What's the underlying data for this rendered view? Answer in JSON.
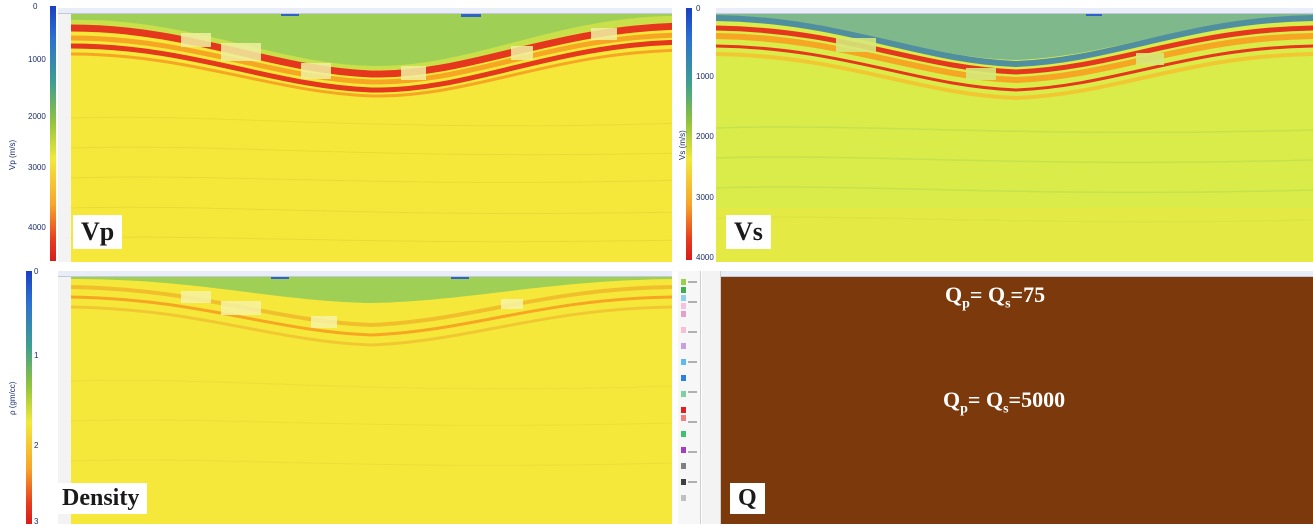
{
  "panels": {
    "vp": {
      "label": "Vp",
      "colorbar_title": "Vp (m/s)",
      "ticks": [
        "0",
        "1000",
        "2000",
        "3000",
        "4000"
      ]
    },
    "vs": {
      "label": "Vs",
      "colorbar_title": "Vs (m/s)",
      "ticks": [
        "0",
        "1000",
        "2000",
        "3000",
        "4000"
      ]
    },
    "density": {
      "label": "Density",
      "colorbar_title": "ρ (gm/cc)",
      "ticks": [
        "0",
        "1",
        "2",
        "3"
      ]
    },
    "q": {
      "label": "Q",
      "upper_prefix": "Q",
      "upper_sub_p": "p",
      "upper_mid": "= Q",
      "upper_sub_s": "s",
      "upper_value": "=75",
      "lower_prefix": "Q",
      "lower_sub_p": "p",
      "lower_mid": "= Q",
      "lower_sub_s": "s",
      "lower_value": "=5000",
      "background_color": "#7c3a0c"
    }
  },
  "colors": {
    "field_yellow": "#f5e83a",
    "field_lightgreen": "#d9ec4a",
    "band_red": "#e5371d",
    "band_orange": "#f6a623",
    "band_green": "#8cc54a",
    "band_blue": "#2f63c8"
  }
}
